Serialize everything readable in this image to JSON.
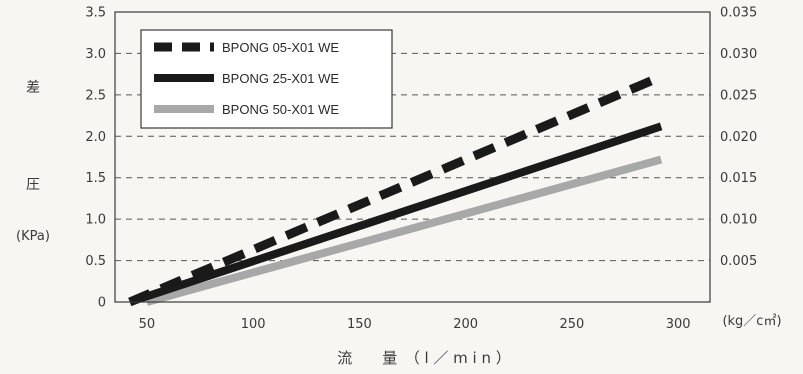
{
  "chart_data": {
    "type": "line",
    "title": "",
    "xlabel": "流　　量　（ l ／ m i n ）",
    "ylabel_left": [
      "差",
      "圧",
      "(KPa)"
    ],
    "ylabel_right": "(kg／c㎡)",
    "xlim": [
      35,
      315
    ],
    "ylim": [
      0,
      3.5
    ],
    "ylim_right": [
      0,
      0.035
    ],
    "x_ticks": [
      50,
      100,
      150,
      200,
      250,
      300
    ],
    "y_ticks": [
      0,
      0.5,
      1.0,
      1.5,
      2.0,
      2.5,
      3.0,
      3.5
    ],
    "y_tick_labels": [
      "0",
      "0.5",
      "1.0",
      "1.5",
      "2.0",
      "2.5",
      "3.0",
      "3.5"
    ],
    "y_right_ticks": [
      0.005,
      0.01,
      0.015,
      0.02,
      0.025,
      0.03,
      0.035
    ],
    "y_right_tick_labels": [
      "0.005",
      "0.010",
      "0.015",
      "0.020",
      "0.025",
      "0.030",
      "0.035"
    ],
    "grid": "horizontal-dashed",
    "legend_position": "top-left",
    "series": [
      {
        "name": "BPONG 05-X01 WE",
        "style": "dashed",
        "color": "#1a1a1a",
        "x": [
          42,
          292
        ],
        "y": [
          0,
          2.72
        ]
      },
      {
        "name": "BPONG 25-X01 WE",
        "style": "solid",
        "color": "#1a1a1a",
        "x": [
          42,
          292
        ],
        "y": [
          0,
          2.12
        ]
      },
      {
        "name": "BPONG 50-X01 WE",
        "style": "solid",
        "color": "#a8a8a8",
        "x": [
          50,
          292
        ],
        "y": [
          0,
          1.72
        ]
      }
    ]
  }
}
